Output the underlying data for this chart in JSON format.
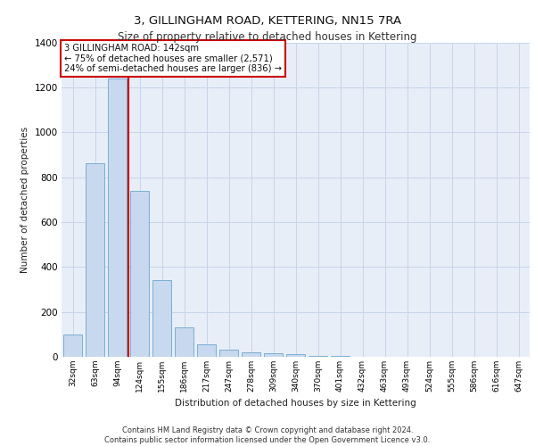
{
  "title": "3, GILLINGHAM ROAD, KETTERING, NN15 7RA",
  "subtitle": "Size of property relative to detached houses in Kettering",
  "xlabel": "Distribution of detached houses by size in Kettering",
  "ylabel": "Number of detached properties",
  "categories": [
    "32sqm",
    "63sqm",
    "94sqm",
    "124sqm",
    "155sqm",
    "186sqm",
    "217sqm",
    "247sqm",
    "278sqm",
    "309sqm",
    "340sqm",
    "370sqm",
    "401sqm",
    "432sqm",
    "463sqm",
    "493sqm",
    "524sqm",
    "555sqm",
    "586sqm",
    "616sqm",
    "647sqm"
  ],
  "values": [
    100,
    860,
    1240,
    740,
    340,
    130,
    55,
    30,
    20,
    15,
    10,
    5,
    2,
    1,
    1,
    0,
    0,
    0,
    0,
    0,
    0
  ],
  "bar_color": "#c8d8ee",
  "bar_edge_color": "#7aafd4",
  "vline_color": "#cc0000",
  "vline_x_index": 3,
  "annotation_text": "3 GILLINGHAM ROAD: 142sqm\n← 75% of detached houses are smaller (2,571)\n24% of semi-detached houses are larger (836) →",
  "annotation_box_color": "#ffffff",
  "annotation_box_edge": "#cc0000",
  "grid_color": "#c8d4e8",
  "background_color": "#e8eef8",
  "ylim": [
    0,
    1400
  ],
  "yticks": [
    0,
    200,
    400,
    600,
    800,
    1000,
    1200,
    1400
  ],
  "title_fontsize": 9.5,
  "subtitle_fontsize": 8.5,
  "footer_line1": "Contains HM Land Registry data © Crown copyright and database right 2024.",
  "footer_line2": "Contains public sector information licensed under the Open Government Licence v3.0."
}
